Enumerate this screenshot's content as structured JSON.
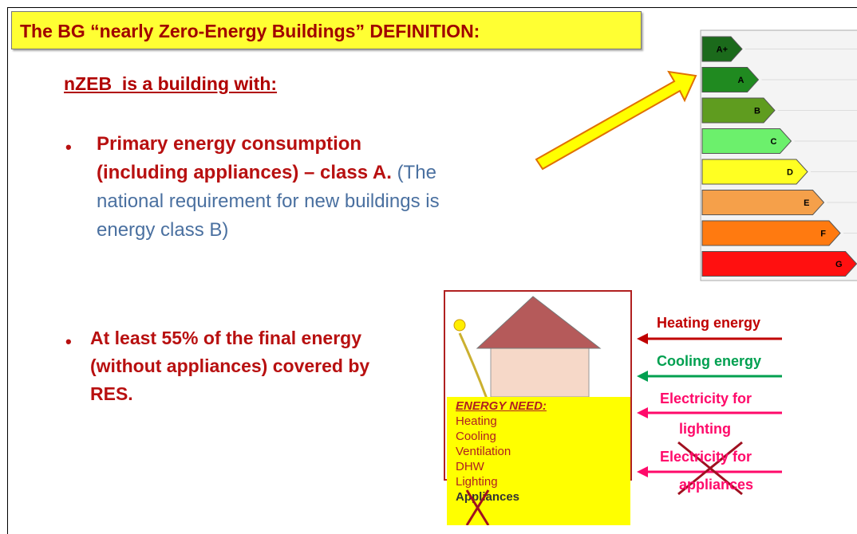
{
  "header": {
    "title": "The BG “nearly Zero-Energy Buildings” DEFINITION:"
  },
  "subtitle": "nZEB  is a building with:",
  "bullets": [
    {
      "bold": "Primary energy consumption (including appliances) – class A.",
      "normal": "(The national requirement for new buildings is energy class B)"
    },
    {
      "bold": "At least 55% of the final energy (without appliances) covered by RES."
    }
  ],
  "energy_classes": [
    {
      "label": "A+",
      "color": "#1b6a1b"
    },
    {
      "label": "A",
      "color": "#208a20"
    },
    {
      "label": "B",
      "color": "#5f9c1f"
    },
    {
      "label": "C",
      "color": "#6cf06c"
    },
    {
      "label": "D",
      "color": "#ffff22"
    },
    {
      "label": "E",
      "color": "#f5a04a"
    },
    {
      "label": "F",
      "color": "#ff7a10"
    },
    {
      "label": "G",
      "color": "#ff1010"
    }
  ],
  "energy_need": {
    "title": "ENERGY NEED:",
    "items": [
      "Heating",
      "Cooling",
      "Ventilation",
      "DHW",
      "Lighting",
      "Appliances"
    ]
  },
  "inputs": [
    {
      "lines": [
        "Heating energy"
      ],
      "color": "#c00000"
    },
    {
      "lines": [
        "Cooling energy"
      ],
      "color": "#00a050"
    },
    {
      "lines": [
        "Electricity for",
        "lighting"
      ],
      "color": "#ff0a6a"
    },
    {
      "lines": [
        "Electricity for",
        "appliances"
      ],
      "color": "#ff0a6a"
    }
  ]
}
